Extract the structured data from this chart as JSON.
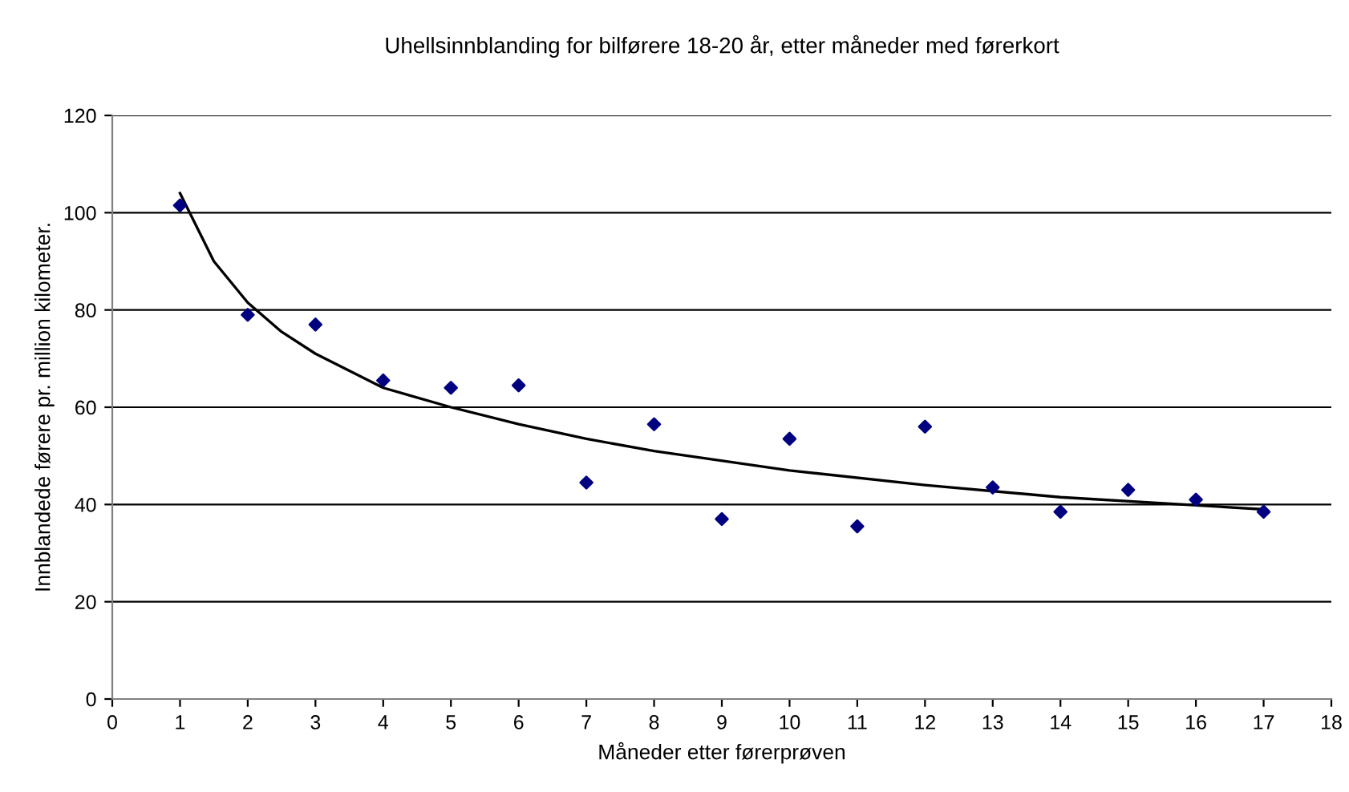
{
  "chart_data": {
    "type": "scatter",
    "title": "Uhellsinnblanding for bilførere 18-20 år, etter måneder med førerkort",
    "xlabel": "Måneder etter førerprøven",
    "ylabel": "Innblandede førere pr. million kilometer.",
    "x": [
      1,
      2,
      3,
      4,
      5,
      6,
      7,
      8,
      9,
      10,
      11,
      12,
      13,
      14,
      15,
      16,
      17
    ],
    "series": [
      {
        "color": "#000080",
        "marker": "diamond",
        "values": [
          101.5,
          79,
          77,
          65.5,
          64,
          64.5,
          44.5,
          56.5,
          37,
          53.5,
          35.5,
          56,
          43.5,
          38.5,
          43,
          41,
          38.5
        ]
      },
      {
        "type": "line",
        "color": "#000000",
        "marker": "none",
        "line_style": "solid",
        "x": [
          1,
          1.5,
          2,
          2.5,
          3,
          4,
          5,
          6,
          7,
          8,
          10,
          12,
          14,
          17
        ],
        "values": [
          104,
          90,
          81.5,
          75.5,
          71,
          64,
          60,
          56.5,
          53.5,
          51,
          47,
          44,
          41.5,
          39
        ]
      }
    ],
    "xlim": [
      0,
      18
    ],
    "xticks": [
      0,
      1,
      2,
      3,
      4,
      5,
      6,
      7,
      8,
      9,
      10,
      11,
      12,
      13,
      14,
      15,
      16,
      17,
      18
    ],
    "ylim": [
      0,
      120
    ],
    "yticks": [
      0,
      20,
      40,
      60,
      80,
      100,
      120
    ],
    "grid": "y",
    "legend": false
  }
}
